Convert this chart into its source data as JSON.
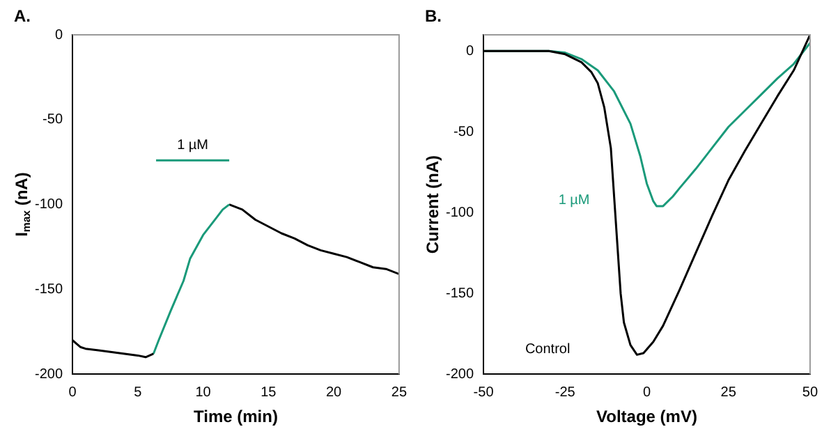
{
  "chart_data": [
    {
      "type": "line",
      "title": "A.",
      "xlabel": "Time (min)",
      "ylabel": "I$_{max}$ (nA)",
      "xlim": [
        0,
        25
      ],
      "xticks": [
        0,
        5,
        10,
        15,
        20,
        25
      ],
      "ylim": [
        -200,
        0
      ],
      "yticks": [
        -200,
        -150,
        -100,
        -50,
        0
      ],
      "grid": false,
      "legend": false,
      "marker": "none",
      "line_style": "solid",
      "series": [
        {
          "color": "#000000",
          "x": [
            0,
            0.3,
            0.6,
            1,
            2,
            3,
            4,
            5,
            5.6,
            6.2
          ],
          "values": [
            -180,
            -182,
            -184,
            -185,
            -186,
            -187,
            -188,
            -189,
            -190,
            -188
          ]
        },
        {
          "color": "#1a9a7a",
          "x": [
            6.2,
            6.6,
            7.5,
            8.5,
            9,
            10,
            11,
            11.5,
            12
          ],
          "values": [
            -188,
            -180,
            -163,
            -145,
            -132,
            -118,
            -108,
            -103,
            -100
          ]
        },
        {
          "color": "#000000",
          "x": [
            12,
            13,
            14,
            15,
            16,
            17,
            18,
            19,
            20,
            21,
            22,
            23,
            24,
            25
          ],
          "values": [
            -100,
            -103,
            -109,
            -113,
            -117,
            -120,
            -124,
            -127,
            -129,
            -131,
            -134,
            -137,
            -138,
            -141
          ]
        },
        {
          "name": "1 µM",
          "color": "#1a9a7a",
          "x": [
            6.4,
            12
          ],
          "values": [
            -74,
            -74
          ]
        }
      ]
    },
    {
      "type": "line",
      "title": "B.",
      "xlabel": "Voltage (mV)",
      "ylabel": "Current (nA)",
      "xlim": [
        -50,
        50
      ],
      "xticks": [
        -50,
        -25,
        0,
        25,
        50
      ],
      "ylim": [
        -200,
        10
      ],
      "yticks": [
        -200,
        -150,
        -100,
        -50,
        0
      ],
      "grid": false,
      "legend": false,
      "marker": "none",
      "line_style": "solid",
      "series": [
        {
          "name": "Control",
          "color": "#000000",
          "x": [
            -50,
            -30,
            -25,
            -20,
            -17,
            -15,
            -13,
            -11,
            -10,
            -9,
            -8,
            -7,
            -5,
            -3,
            -1,
            2,
            5,
            10,
            15,
            20,
            25,
            30,
            35,
            40,
            45,
            50
          ],
          "values": [
            0,
            0,
            -2,
            -7,
            -13,
            -20,
            -35,
            -60,
            -90,
            -120,
            -150,
            -168,
            -182,
            -188,
            -187,
            -180,
            -170,
            -148,
            -125,
            -102,
            -80,
            -62,
            -45,
            -28,
            -12,
            10
          ]
        },
        {
          "name": "1 µM",
          "color": "#1a9a7a",
          "x": [
            -50,
            -30,
            -25,
            -20,
            -15,
            -10,
            -5,
            -2,
            0,
            2,
            3,
            5,
            8,
            10,
            15,
            20,
            25,
            30,
            35,
            40,
            45,
            50
          ],
          "values": [
            0,
            0,
            -1,
            -5,
            -12,
            -25,
            -45,
            -65,
            -82,
            -93,
            -96,
            -96,
            -90,
            -85,
            -73,
            -60,
            -47,
            -37,
            -27,
            -17,
            -8,
            5
          ]
        }
      ]
    }
  ]
}
